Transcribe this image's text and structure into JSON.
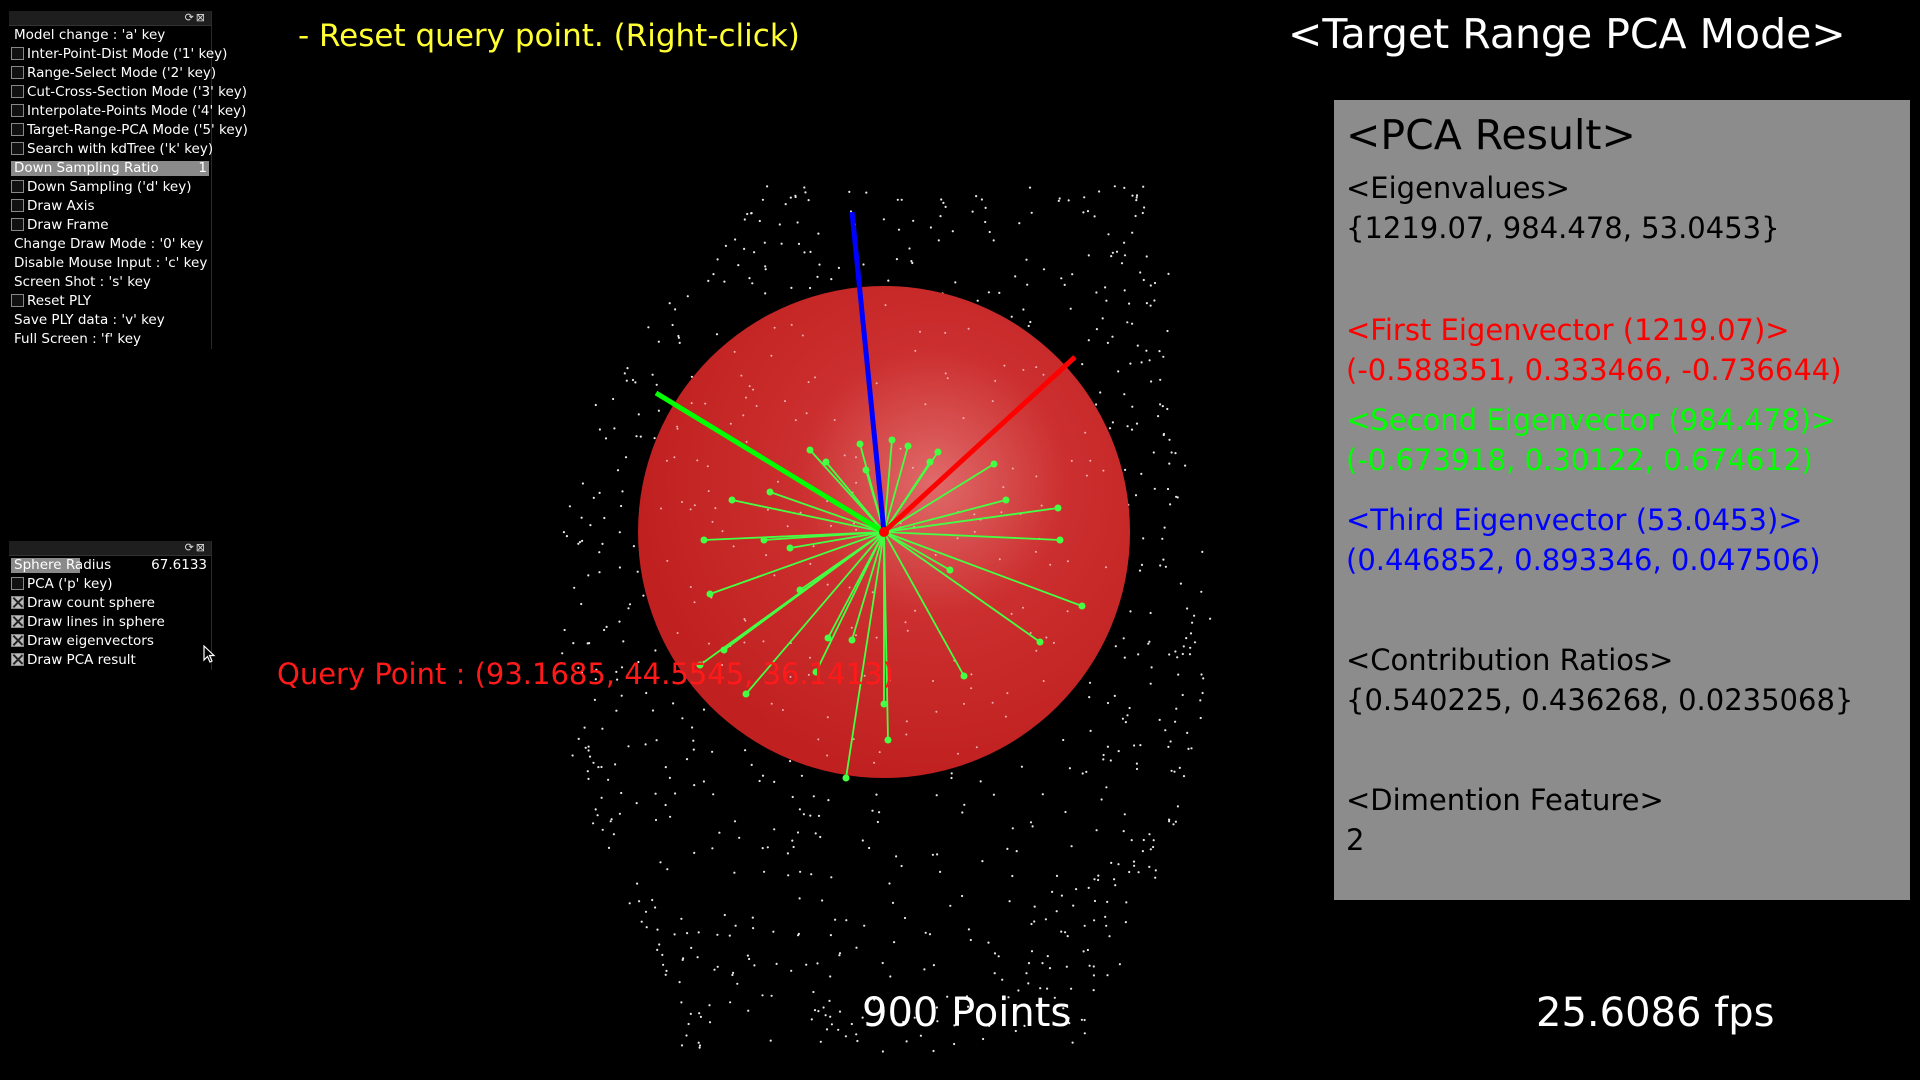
{
  "panel1": {
    "rows": [
      {
        "type": "button",
        "label": "Model change : 'a' key",
        "name": "model-change-button"
      },
      {
        "type": "toggle",
        "label": "Inter-Point-Dist Mode ('1' key)",
        "checked": false,
        "name": "inter-point-dist-toggle"
      },
      {
        "type": "toggle",
        "label": "Range-Select Mode ('2' key)",
        "checked": false,
        "name": "range-select-toggle"
      },
      {
        "type": "toggle",
        "label": "Cut-Cross-Section Mode ('3' key)",
        "checked": false,
        "name": "cut-cross-section-toggle"
      },
      {
        "type": "toggle",
        "label": "Interpolate-Points Mode ('4' key)",
        "checked": false,
        "name": "interpolate-points-toggle"
      },
      {
        "type": "toggle",
        "label": "Target-Range-PCA Mode ('5' key)",
        "checked": false,
        "name": "target-range-pca-toggle"
      },
      {
        "type": "toggle",
        "label": "Search with kdTree ('k' key)",
        "checked": false,
        "name": "kdtree-search-toggle"
      },
      {
        "type": "slider",
        "label": "Down Sampling Ratio",
        "value": "1",
        "fraction": 1.0,
        "name": "down-sampling-slider"
      },
      {
        "type": "toggle",
        "label": "Down Sampling ('d' key)",
        "checked": false,
        "name": "down-sampling-toggle"
      },
      {
        "type": "toggle",
        "label": "Draw Axis",
        "checked": false,
        "name": "draw-axis-toggle"
      },
      {
        "type": "toggle",
        "label": "Draw Frame",
        "checked": false,
        "name": "draw-frame-toggle"
      },
      {
        "type": "button",
        "label": "Change Draw Mode : '0' key",
        "name": "change-draw-mode-button"
      },
      {
        "type": "button",
        "label": "Disable Mouse Input : 'c' key",
        "name": "disable-mouse-input-button"
      },
      {
        "type": "button",
        "label": "Screen Shot : 's' key",
        "name": "screenshot-button"
      },
      {
        "type": "toggle",
        "label": "Reset PLY",
        "checked": false,
        "name": "reset-ply-toggle"
      },
      {
        "type": "button",
        "label": "Save PLY data : 'v' key",
        "name": "save-ply-button"
      },
      {
        "type": "button",
        "label": "Full Screen : 'f' key",
        "name": "full-screen-button"
      }
    ]
  },
  "panel2": {
    "rows": [
      {
        "type": "slider",
        "label": "Sphere Radius",
        "value": "67.6133",
        "fraction": 0.35,
        "name": "sphere-radius-slider"
      },
      {
        "type": "toggle",
        "label": "PCA ('p' key)",
        "checked": false,
        "name": "pca-toggle"
      },
      {
        "type": "toggle",
        "label": "Draw count sphere",
        "checked": true,
        "name": "draw-count-sphere-toggle"
      },
      {
        "type": "toggle",
        "label": "Draw lines in sphere",
        "checked": true,
        "name": "draw-lines-toggle"
      },
      {
        "type": "toggle",
        "label": "Draw eigenvectors",
        "checked": true,
        "name": "draw-eigenvectors-toggle"
      },
      {
        "type": "toggle",
        "label": "Draw PCA result",
        "checked": true,
        "name": "draw-pca-result-toggle"
      }
    ]
  },
  "overlay": {
    "reset_hint": "- Reset query point. (Right-click)",
    "mode_title": "<Target Range PCA Mode>",
    "query_point": "Query Point : (93.1685, 44.5545, 36.1413)",
    "points_count": "900 Points",
    "fps": "25.6086 fps"
  },
  "pca": {
    "title": "<PCA Result>",
    "eigenvalues_label": "<Eigenvalues>",
    "eigenvalues": "{1219.07, 984.478, 53.0453}",
    "first_label": "<First Eigenvector (1219.07)>",
    "first_vec": "(-0.588351, 0.333466, -0.736644)",
    "second_label": "<Second Eigenvector (984.478)>",
    "second_vec": "(-0.673918, 0.30122, 0.674612)",
    "third_label": "<Third Eigenvector (53.0453)>",
    "third_vec": "(0.446852, 0.893346, 0.047506)",
    "ratios_label": "<Contribution Ratios>",
    "ratios": "{0.540225, 0.436268, 0.0235068}",
    "dim_label": "<Dimention Feature>",
    "dim_value": "2"
  },
  "colors": {
    "background": "#000000",
    "sphere": "#cc2222",
    "first_eigenvector": "#ff0000",
    "second_eigenvector": "#00ff00",
    "third_eigenvector": "#0000ff",
    "neighbor_lines": "#44ff44",
    "hint_text": "#ffff33",
    "pca_panel": "#8c8c8c"
  },
  "icons": {
    "panel_header": [
      "refresh-icon",
      "close-icon"
    ],
    "cursor": "mouse-pointer-icon"
  }
}
